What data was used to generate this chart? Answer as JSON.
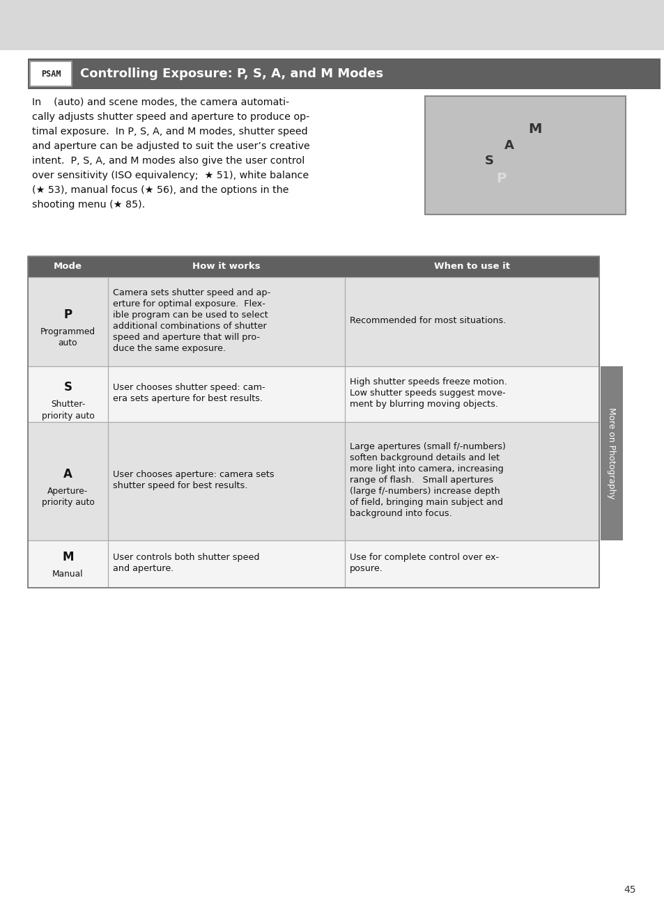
{
  "page_bg": "#ffffff",
  "top_gray_color": "#d8d8d8",
  "header_bar_color": "#606060",
  "header_text": "Controlling Exposure: P, S, A, and M Modes",
  "header_text_color": "#ffffff",
  "psam_label": "PSAM",
  "table_header_bg": "#606060",
  "table_header_fg": "#ffffff",
  "table_col_headers": [
    "Mode",
    "How it works",
    "When to use it"
  ],
  "table_border_color": "#aaaaaa",
  "row_bg_dark": "#e2e2e2",
  "row_bg_light": "#f4f4f4",
  "sidebar_bg": "#808080",
  "sidebar_text": "More on Photography",
  "page_number": "45",
  "body_lines": [
    "In    (auto) and scene modes, the camera automati-",
    "cally adjusts shutter speed and aperture to produce op-",
    "timal exposure.  In P, S, A, and M modes, shutter speed",
    "and aperture can be adjusted to suit the user’s creative",
    "intent.  P, S, A, and M modes also give the user control",
    "over sensitivity (ISO equivalency;  ★ 51), white balance",
    "(★ 53), manual focus (★ 56), and the options in the",
    "shooting menu (★ 85)."
  ],
  "rows": [
    {
      "mode1": "P",
      "mode2": "Programmed",
      "mode3": "auto",
      "how": [
        "Camera sets shutter speed and ap-",
        "erture for optimal exposure.  Flex-",
        "ible program can be used to select",
        "additional combinations of shutter",
        "speed and aperture that will pro-",
        "duce the same exposure."
      ],
      "when": [
        "Recommended for most situations."
      ],
      "bg": "#e2e2e2"
    },
    {
      "mode1": "S",
      "mode2": "Shutter-",
      "mode3": "priority auto",
      "how": [
        "User chooses shutter speed: cam-",
        "era sets aperture for best results."
      ],
      "when": [
        "High shutter speeds freeze motion.",
        "Low shutter speeds suggest move-",
        "ment by blurring moving objects."
      ],
      "bg": "#f4f4f4"
    },
    {
      "mode1": "A",
      "mode2": "Aperture-",
      "mode3": "priority auto",
      "how": [
        "User chooses aperture: camera sets",
        "shutter speed for best results."
      ],
      "when": [
        "Large apertures (small f/-numbers)",
        "soften background details and let",
        "more light into camera, increasing",
        "range of flash.   Small apertures",
        "(large f/-numbers) increase depth",
        "of field, bringing main subject and",
        "background into focus."
      ],
      "bg": "#e2e2e2"
    },
    {
      "mode1": "M",
      "mode2": "Manual",
      "mode3": "",
      "how": [
        "User controls both shutter speed",
        "and aperture."
      ],
      "when": [
        "Use for complete control over ex-",
        "posure."
      ],
      "bg": "#f4f4f4"
    }
  ]
}
